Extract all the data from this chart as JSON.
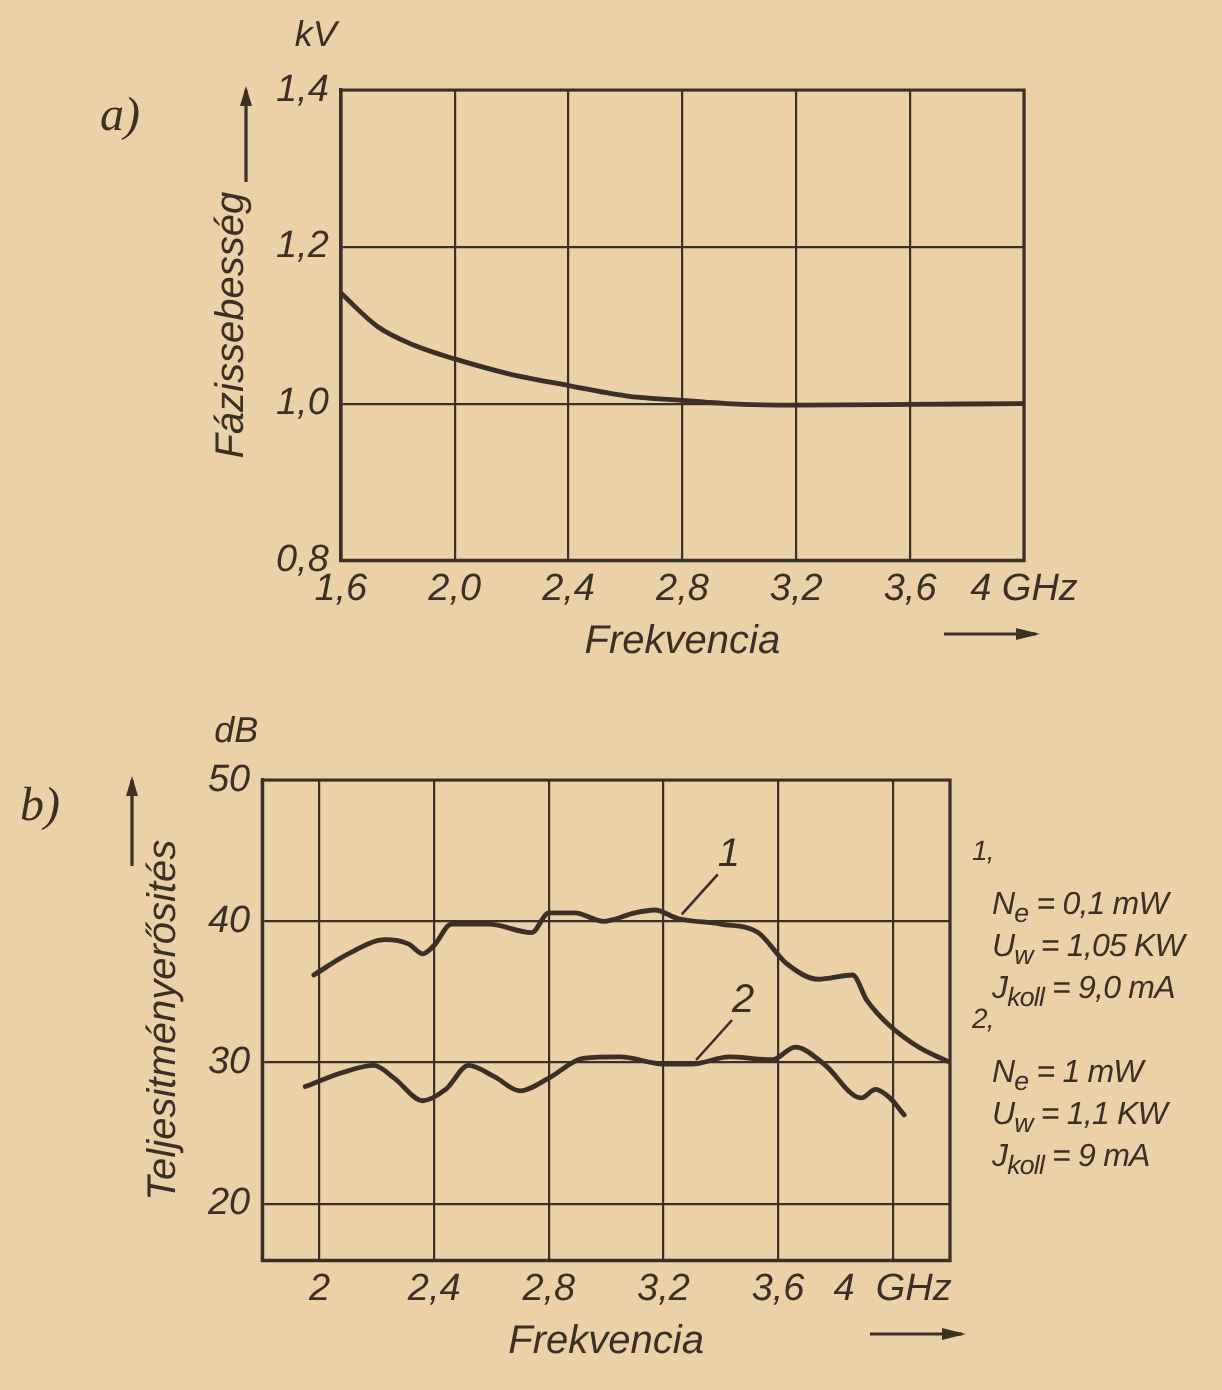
{
  "chart_data": [
    {
      "type": "line",
      "xlabel": "Frekvencia",
      "ylabel": "Fázissebesség",
      "annotations": [
        "a)",
        "kV"
      ],
      "x": [
        1.6,
        1.73,
        1.86,
        2.0,
        2.19,
        2.4,
        2.6,
        2.8,
        3.01,
        3.2,
        3.6,
        4.0
      ],
      "series": [
        {
          "color": "#3a3026",
          "values": [
            1.141,
            1.098,
            1.074,
            1.057,
            1.038,
            1.023,
            1.01,
            1.004,
            0.999,
            0.998,
            0.999,
            1.0
          ]
        }
      ],
      "xlim": [
        1.6,
        4.0
      ],
      "xticks": [
        {
          "value": 1.6,
          "label": "1,6"
        },
        {
          "value": 2.0,
          "label": "2,0"
        },
        {
          "value": 2.4,
          "label": "2,4"
        },
        {
          "value": 2.8,
          "label": "2,8"
        },
        {
          "value": 3.2,
          "label": "3,2"
        },
        {
          "value": 3.6,
          "label": "3,6"
        },
        {
          "value": 4.0,
          "label": "4 GHz"
        }
      ],
      "ylim": [
        0.8,
        1.4
      ],
      "yticks": [
        {
          "value": 0.8,
          "label": "0,8"
        },
        {
          "value": 1.0,
          "label": "1,0"
        },
        {
          "value": 1.2,
          "label": "1,2"
        },
        {
          "value": 1.4,
          "label": "1,4"
        }
      ],
      "grid": true,
      "legend": false,
      "marker": "none",
      "line_style": "solid"
    },
    {
      "type": "line",
      "xlabel": "Frekvencia",
      "ylabel": "Teljesitményerősités",
      "annotations": [
        "b)",
        "dB",
        "1,",
        "N$_{e}$ = 0,1 mW",
        "U$_{w}$ = 1,05 KW",
        "J$_{koll}$ = 9,0 mA",
        "2,",
        "N$_{e}$ = 1 mW",
        "U$_{w}$ = 1,1 KW",
        "J$_{koll}$ = 9 mA",
        {
          "text": "1",
          "x": 3.25,
          "y": 40.2
        },
        {
          "text": "2",
          "x": 3.3,
          "y": 29.9
        }
      ],
      "series": [
        {
          "color": "#3a3026",
          "x": [
            1.98,
            2.1,
            2.23,
            2.31,
            2.36,
            2.4,
            2.46,
            2.59,
            2.74,
            2.8,
            2.89,
            2.99,
            3.1,
            3.17,
            3.25,
            3.4,
            3.53,
            3.63,
            3.74,
            3.86,
            3.91,
            3.99,
            4.09,
            4.19
          ],
          "values": [
            36.2,
            37.7,
            38.7,
            38.4,
            37.7,
            38.3,
            39.8,
            39.8,
            39.2,
            40.6,
            40.6,
            40.0,
            40.6,
            40.8,
            40.2,
            39.8,
            39.2,
            37.0,
            35.9,
            36.2,
            34.4,
            32.6,
            31.1,
            30.1
          ]
        },
        {
          "color": "#3a3026",
          "x": [
            1.95,
            2.08,
            2.19,
            2.26,
            2.36,
            2.44,
            2.52,
            2.61,
            2.7,
            2.8,
            2.92,
            3.05,
            3.2,
            3.3,
            3.43,
            3.58,
            3.66,
            3.76,
            3.89,
            3.94,
            3.99,
            4.04
          ],
          "values": [
            28.3,
            29.3,
            29.8,
            28.9,
            27.3,
            28.1,
            29.8,
            29.0,
            28.0,
            28.9,
            30.3,
            30.4,
            29.9,
            29.9,
            30.4,
            30.2,
            31.1,
            29.9,
            27.5,
            28.1,
            27.5,
            26.3
          ]
        }
      ],
      "xlim": [
        1.8,
        4.2
      ],
      "xticks": [
        2,
        {
          "value": 2.4,
          "label": "2,4"
        },
        {
          "value": 2.8,
          "label": "2,8"
        },
        {
          "value": 3.2,
          "label": "3,2"
        },
        {
          "value": 3.6,
          "label": "3,6"
        },
        {
          "value": 4,
          "label": "4  GHz"
        }
      ],
      "ylim": [
        16,
        50
      ],
      "yticks": [
        20,
        30,
        40,
        50
      ],
      "grid": true,
      "legend": false,
      "marker": "none",
      "line_style": "solid"
    }
  ]
}
